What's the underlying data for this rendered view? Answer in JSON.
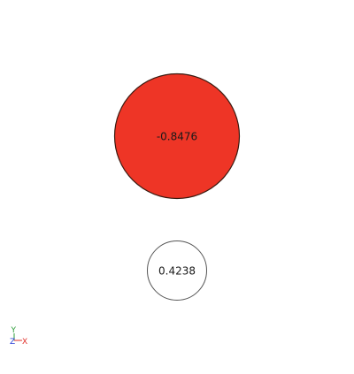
{
  "atoms": [
    {
      "name": "atom-1",
      "charge_label": "-0.8476",
      "fill_color": "#ee3526",
      "stroke_color": "#3a1a10"
    },
    {
      "name": "atom-2",
      "charge_label": "0.4238",
      "fill_color": "#ffffff",
      "stroke_color": "#555555"
    }
  ],
  "axes": {
    "y_label": "Y",
    "z_label": "Z",
    "x_label": "X",
    "y_color": "#2e9e3a",
    "z_color": "#2a3fd6",
    "x_color": "#e0302a"
  }
}
